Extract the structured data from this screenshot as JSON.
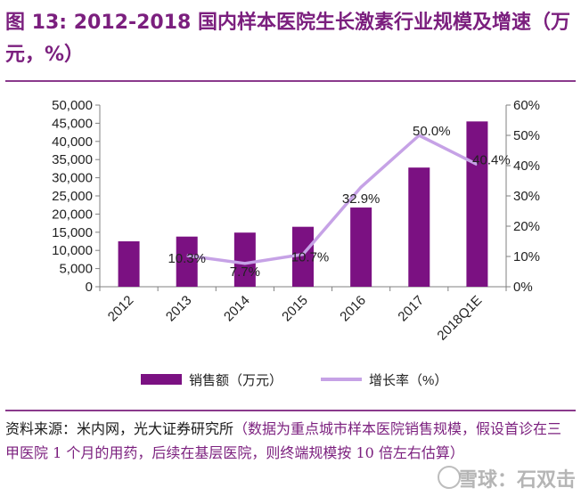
{
  "figure": {
    "title": "图 13: 2012-2018 国内样本医院生长激素行业规模及增速（万元，%）"
  },
  "source": {
    "prefix": "资料来源：米内网，光大证券研究所",
    "note": "（数据为重点城市样本医院销售规模，假设首诊在三甲医院 1 个月的用药，后续在基层医院，则终端规模按 10 倍左右估算）"
  },
  "watermark": {
    "text": "雪球：石双击"
  },
  "chart_data": {
    "type": "bar",
    "categories": [
      "2012",
      "2013",
      "2014",
      "2015",
      "2016",
      "2017",
      "2018Q1E"
    ],
    "series": [
      {
        "name": "销售额（万元）",
        "type": "bar",
        "axis": "left",
        "color": "#7b1182",
        "values": [
          12500,
          13800,
          14900,
          16500,
          21800,
          32800,
          45500
        ]
      },
      {
        "name": "增长率（%）",
        "type": "line",
        "axis": "right",
        "color": "#c6a2e6",
        "values": [
          null,
          10.3,
          7.7,
          10.7,
          32.9,
          50.0,
          40.4
        ],
        "labels": [
          "",
          "10.3%",
          "7.7%",
          "10.7%",
          "32.9%",
          "50.0%",
          "40.4%"
        ]
      }
    ],
    "y_left": {
      "min": 0,
      "max": 50000,
      "ticks": [
        "0",
        "5,000",
        "10,000",
        "15,000",
        "20,000",
        "25,000",
        "30,000",
        "35,000",
        "40,000",
        "45,000",
        "50,000"
      ]
    },
    "y_right": {
      "min": 0,
      "max": 60,
      "ticks": [
        "0%",
        "10%",
        "20%",
        "30%",
        "40%",
        "50%",
        "60%"
      ]
    },
    "legend": {
      "placement": "bottom"
    },
    "grid": false
  }
}
